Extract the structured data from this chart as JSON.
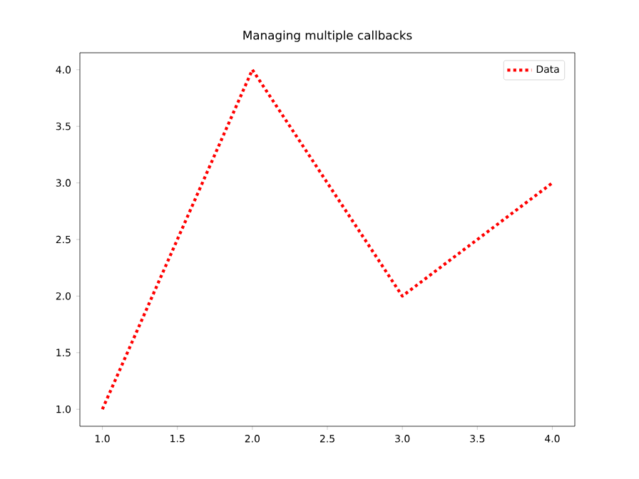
{
  "chart_data": {
    "type": "line",
    "title": "Managing multiple callbacks",
    "x": [
      1,
      2,
      3,
      4
    ],
    "series": [
      {
        "name": "Data",
        "color": "#ff0000",
        "values": [
          1,
          4,
          2,
          3
        ]
      }
    ],
    "line_style": "dotted",
    "legend": "top right",
    "grid": false,
    "xlim": [
      0.85,
      4.15
    ],
    "ylim": [
      0.85,
      4.15
    ],
    "xticks": [
      {
        "value": 1,
        "label": "1.0"
      },
      {
        "value": 1.5,
        "label": "1.5"
      },
      {
        "value": 2,
        "label": "2.0"
      },
      {
        "value": 2.5,
        "label": "2.5"
      },
      {
        "value": 3,
        "label": "3.0"
      },
      {
        "value": 3.5,
        "label": "3.5"
      },
      {
        "value": 4,
        "label": "4.0"
      }
    ],
    "yticks": [
      {
        "value": 1,
        "label": "1.0"
      },
      {
        "value": 1.5,
        "label": "1.5"
      },
      {
        "value": 2,
        "label": "2.0"
      },
      {
        "value": 2.5,
        "label": "2.5"
      },
      {
        "value": 3,
        "label": "3.0"
      },
      {
        "value": 3.5,
        "label": "3.5"
      },
      {
        "value": 4,
        "label": "4.0"
      }
    ]
  }
}
